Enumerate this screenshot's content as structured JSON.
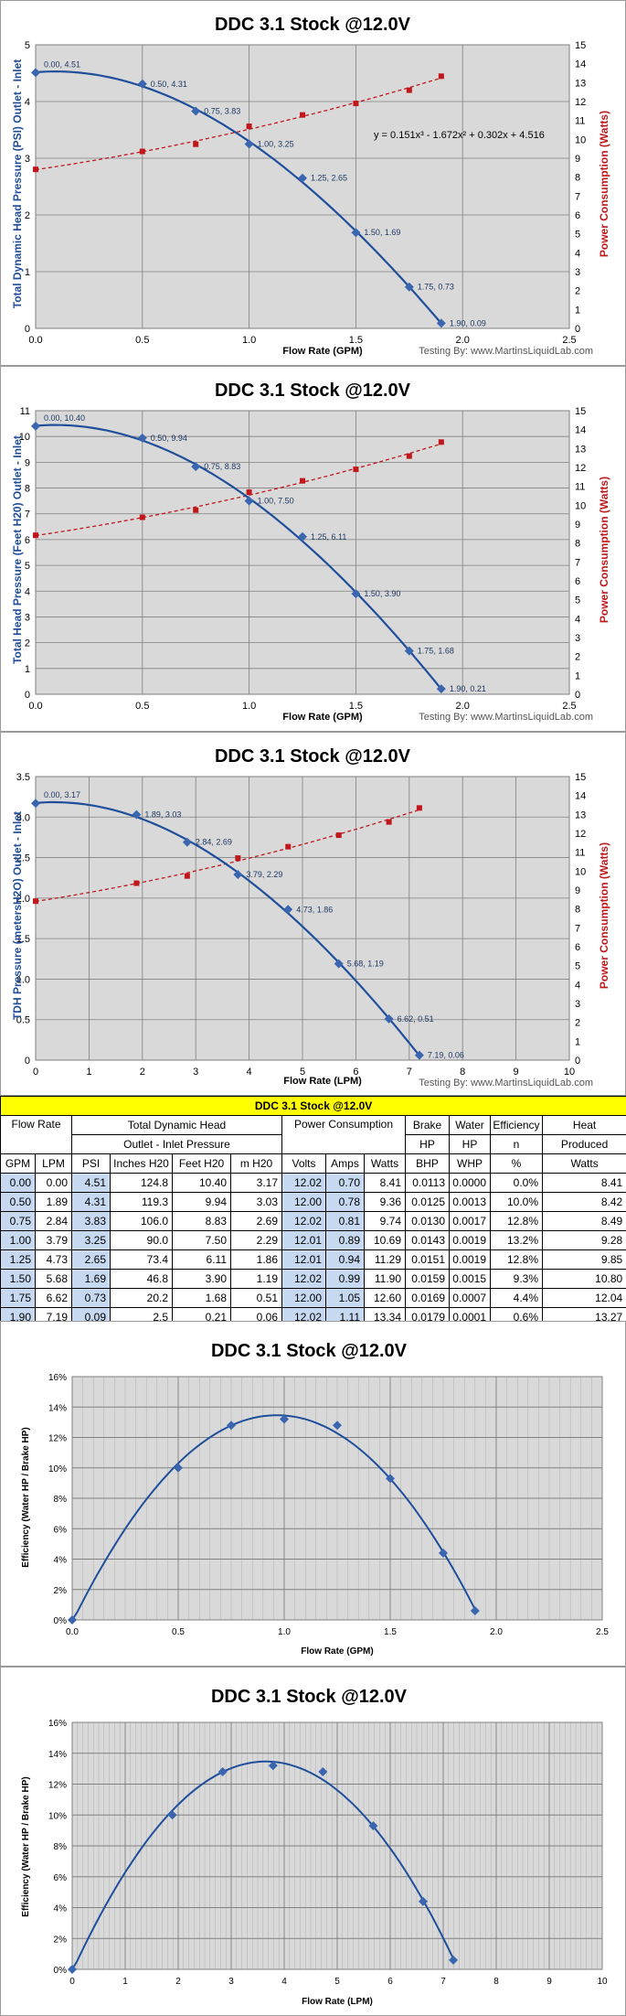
{
  "colors": {
    "blue": "#1f4e9b",
    "red": "#c0171b",
    "plot_bg": "#d9d9d9",
    "grid": "#808080",
    "yellow": "#ffff00",
    "light_blue": "#c6d9f1"
  },
  "credit": "Testing By: www.MartinsLiquidLab.com",
  "charts": [
    {
      "type": "line",
      "title": "DDC 3.1 Stock @12.0V",
      "xlabel": "Flow Rate (GPM)",
      "ylabel_left": "Total Dynamic Head Pressure (PSI) Outlet - Inlet",
      "ylabel_right": "Power Consumption (Watts)",
      "xlim": [
        0,
        2.5
      ],
      "xticks": [
        "0.0",
        "0.5",
        "1.0",
        "1.5",
        "2.0",
        "2.5"
      ],
      "ylim_left": [
        0,
        5
      ],
      "yticks_left": [
        "0",
        "1",
        "2",
        "3",
        "4",
        "5"
      ],
      "ylim_right": [
        0,
        15
      ],
      "yticks_right": [
        "0",
        "1",
        "2",
        "3",
        "4",
        "5",
        "6",
        "7",
        "8",
        "9",
        "10",
        "11",
        "12",
        "13",
        "14",
        "15"
      ],
      "equation": "y = 0.151x³ - 1.672x² + 0.302x + 4.516",
      "head_series": {
        "name": "Head (PSI)",
        "x": [
          0.0,
          0.5,
          0.75,
          1.0,
          1.25,
          1.5,
          1.75,
          1.9
        ],
        "y": [
          4.51,
          4.31,
          3.83,
          3.25,
          2.65,
          1.69,
          0.73,
          0.09
        ],
        "labels": [
          "0.00, 4.51",
          "0.50, 4.31",
          "0.75, 3.83",
          "1.00, 3.25",
          "1.25, 2.65",
          "1.50, 1.69",
          "1.75, 0.73",
          "1.90, 0.09"
        ]
      },
      "power_series": {
        "name": "Power (Watts)",
        "x": [
          0.0,
          0.5,
          0.75,
          1.0,
          1.25,
          1.5,
          1.75,
          1.9
        ],
        "y": [
          8.41,
          9.36,
          9.74,
          10.69,
          11.29,
          11.9,
          12.6,
          13.34
        ]
      }
    },
    {
      "type": "line",
      "title": "DDC 3.1 Stock @12.0V",
      "xlabel": "Flow Rate (GPM)",
      "ylabel_left": "Total Head Pressure (Feet H20) Outlet - Inlet",
      "ylabel_right": "Power Consumption (Watts)",
      "xlim": [
        0,
        2.5
      ],
      "xticks": [
        "0.0",
        "0.5",
        "1.0",
        "1.5",
        "2.0",
        "2.5"
      ],
      "ylim_left": [
        0,
        11
      ],
      "yticks_left": [
        "0",
        "1",
        "2",
        "3",
        "4",
        "5",
        "6",
        "7",
        "8",
        "9",
        "10",
        "11"
      ],
      "ylim_right": [
        0,
        15
      ],
      "yticks_right": [
        "0",
        "1",
        "2",
        "3",
        "4",
        "5",
        "6",
        "7",
        "8",
        "9",
        "10",
        "11",
        "12",
        "13",
        "14",
        "15"
      ],
      "head_series": {
        "name": "Head (Feet H20)",
        "x": [
          0.0,
          0.5,
          0.75,
          1.0,
          1.25,
          1.5,
          1.75,
          1.9
        ],
        "y": [
          10.4,
          9.94,
          8.83,
          7.5,
          6.11,
          3.9,
          1.68,
          0.21
        ],
        "labels": [
          "0.00, 10.40",
          "0.50, 9.94",
          "0.75, 8.83",
          "1.00, 7.50",
          "1.25, 6.11",
          "1.50, 3.90",
          "1.75, 1.68",
          "1.90, 0.21"
        ]
      },
      "power_series": {
        "name": "Power (Watts)",
        "x": [
          0.0,
          0.5,
          0.75,
          1.0,
          1.25,
          1.5,
          1.75,
          1.9
        ],
        "y": [
          8.41,
          9.36,
          9.74,
          10.69,
          11.29,
          11.9,
          12.6,
          13.34
        ]
      }
    },
    {
      "type": "line",
      "title": "DDC 3.1 Stock @12.0V",
      "xlabel": "Flow Rate (LPM)",
      "ylabel_left": "TDH Pressure (metersH2O) Outlet - Inlet",
      "ylabel_right": "Power Consumption (Watts)",
      "xlim": [
        0,
        10
      ],
      "xticks": [
        "0",
        "1",
        "2",
        "3",
        "4",
        "5",
        "6",
        "7",
        "8",
        "9",
        "10"
      ],
      "ylim_left": [
        0,
        3.5
      ],
      "yticks_left": [
        "0",
        "0.5",
        "1.0",
        "1.5",
        "2.0",
        "2.5",
        "3.0",
        "3.5"
      ],
      "ylim_right": [
        0,
        15
      ],
      "yticks_right": [
        "0",
        "1",
        "2",
        "3",
        "4",
        "5",
        "6",
        "7",
        "8",
        "9",
        "10",
        "11",
        "12",
        "13",
        "14",
        "15"
      ],
      "head_series": {
        "name": "Head (m H20)",
        "x": [
          0.0,
          1.89,
          2.84,
          3.79,
          4.73,
          5.68,
          6.62,
          7.19
        ],
        "y": [
          3.17,
          3.03,
          2.69,
          2.29,
          1.86,
          1.19,
          0.51,
          0.06
        ],
        "labels": [
          "0.00, 3.17",
          "1.89, 3.03",
          "2.84, 2.69",
          "3.79, 2.29",
          "4.73, 1.86",
          "5.68, 1.19",
          "6.62, 0.51",
          "7.19, 0.06"
        ]
      },
      "power_series": {
        "name": "Power (Watts)",
        "x": [
          0.0,
          1.89,
          2.84,
          3.79,
          4.73,
          5.68,
          6.62,
          7.19
        ],
        "y": [
          8.41,
          9.36,
          9.74,
          10.69,
          11.29,
          11.9,
          12.6,
          13.34
        ]
      }
    }
  ],
  "chart_data": [
    {
      "type": "line",
      "title": "DDC 3.1 Stock @12.0V",
      "xlabel": "Flow Rate (GPM)",
      "ylabel": "Total Dynamic Head Pressure (PSI) Outlet - Inlet",
      "y2label": "Power Consumption (Watts)",
      "series": [
        {
          "name": "PSI",
          "x": [
            0.0,
            0.5,
            0.75,
            1.0,
            1.25,
            1.5,
            1.75,
            1.9
          ],
          "values": [
            4.51,
            4.31,
            3.83,
            3.25,
            2.65,
            1.69,
            0.73,
            0.09
          ]
        },
        {
          "name": "Watts",
          "x": [
            0.0,
            0.5,
            0.75,
            1.0,
            1.25,
            1.5,
            1.75,
            1.9
          ],
          "values": [
            8.41,
            9.36,
            9.74,
            10.69,
            11.29,
            11.9,
            12.6,
            13.34
          ]
        }
      ]
    },
    {
      "type": "line",
      "title": "DDC 3.1 Stock @12.0V",
      "xlabel": "Flow Rate (GPM)",
      "ylabel": "Total Head Pressure (Feet H20) Outlet - Inlet",
      "y2label": "Power Consumption (Watts)",
      "series": [
        {
          "name": "Feet H20",
          "x": [
            0.0,
            0.5,
            0.75,
            1.0,
            1.25,
            1.5,
            1.75,
            1.9
          ],
          "values": [
            10.4,
            9.94,
            8.83,
            7.5,
            6.11,
            3.9,
            1.68,
            0.21
          ]
        },
        {
          "name": "Watts",
          "x": [
            0.0,
            0.5,
            0.75,
            1.0,
            1.25,
            1.5,
            1.75,
            1.9
          ],
          "values": [
            8.41,
            9.36,
            9.74,
            10.69,
            11.29,
            11.9,
            12.6,
            13.34
          ]
        }
      ]
    },
    {
      "type": "line",
      "title": "DDC 3.1 Stock @12.0V",
      "xlabel": "Flow Rate (LPM)",
      "ylabel": "TDH Pressure (metersH2O) Outlet - Inlet",
      "y2label": "Power Consumption (Watts)",
      "series": [
        {
          "name": "m H20",
          "x": [
            0.0,
            1.89,
            2.84,
            3.79,
            4.73,
            5.68,
            6.62,
            7.19
          ],
          "values": [
            3.17,
            3.03,
            2.69,
            2.29,
            1.86,
            1.19,
            0.51,
            0.06
          ]
        },
        {
          "name": "Watts",
          "x": [
            0.0,
            1.89,
            2.84,
            3.79,
            4.73,
            5.68,
            6.62,
            7.19
          ],
          "values": [
            8.41,
            9.36,
            9.74,
            10.69,
            11.29,
            11.9,
            12.6,
            13.34
          ]
        }
      ]
    },
    {
      "type": "table",
      "title": "DDC 3.1 Stock @12.0V",
      "columns": [
        "GPM",
        "LPM",
        "PSI",
        "Inches H20",
        "Feet H20",
        "m H20",
        "Volts",
        "Amps",
        "Watts",
        "BHP",
        "WHP",
        "%",
        "Watts"
      ],
      "rows": [
        [
          "0.00",
          "0.00",
          "4.51",
          "124.8",
          "10.40",
          "3.17",
          "12.02",
          "0.70",
          "8.41",
          "0.0113",
          "0.0000",
          "0.0%",
          "8.41"
        ],
        [
          "0.50",
          "1.89",
          "4.31",
          "119.3",
          "9.94",
          "3.03",
          "12.00",
          "0.78",
          "9.36",
          "0.0125",
          "0.0013",
          "10.0%",
          "8.42"
        ],
        [
          "0.75",
          "2.84",
          "3.83",
          "106.0",
          "8.83",
          "2.69",
          "12.02",
          "0.81",
          "9.74",
          "0.0130",
          "0.0017",
          "12.8%",
          "8.49"
        ],
        [
          "1.00",
          "3.79",
          "3.25",
          "90.0",
          "7.50",
          "2.29",
          "12.01",
          "0.89",
          "10.69",
          "0.0143",
          "0.0019",
          "13.2%",
          "9.28"
        ],
        [
          "1.25",
          "4.73",
          "2.65",
          "73.4",
          "6.11",
          "1.86",
          "12.01",
          "0.94",
          "11.29",
          "0.0151",
          "0.0019",
          "12.8%",
          "9.85"
        ],
        [
          "1.50",
          "5.68",
          "1.69",
          "46.8",
          "3.90",
          "1.19",
          "12.02",
          "0.99",
          "11.90",
          "0.0159",
          "0.0015",
          "9.3%",
          "10.80"
        ],
        [
          "1.75",
          "6.62",
          "0.73",
          "20.2",
          "1.68",
          "0.51",
          "12.00",
          "1.05",
          "12.60",
          "0.0169",
          "0.0007",
          "4.4%",
          "12.04"
        ],
        [
          "1.90",
          "7.19",
          "0.09",
          "2.5",
          "0.21",
          "0.06",
          "12.02",
          "1.11",
          "13.34",
          "0.0179",
          "0.0001",
          "0.6%",
          "13.27"
        ]
      ]
    },
    {
      "type": "line",
      "title": "DDC 3.1 Stock @12.0V",
      "xlabel": "Flow Rate (GPM)",
      "ylabel": "Efficiency (Water HP / Brake HP)",
      "ylim": [
        0,
        16
      ],
      "series": [
        {
          "name": "Efficiency %",
          "x": [
            0.0,
            0.5,
            0.75,
            1.0,
            1.25,
            1.5,
            1.75,
            1.9
          ],
          "values": [
            0.0,
            10.0,
            12.8,
            13.2,
            12.8,
            9.3,
            4.4,
            0.6
          ]
        }
      ]
    },
    {
      "type": "line",
      "title": "DDC 3.1 Stock @12.0V",
      "xlabel": "Flow Rate (LPM)",
      "ylabel": "Efficiency (Water HP / Brake HP)",
      "ylim": [
        0,
        16
      ],
      "series": [
        {
          "name": "Efficiency %",
          "x": [
            0.0,
            1.89,
            2.84,
            3.79,
            4.73,
            5.68,
            6.62,
            7.19
          ],
          "values": [
            0.0,
            10.0,
            12.8,
            13.2,
            12.8,
            9.3,
            4.4,
            0.6
          ]
        }
      ]
    }
  ],
  "table": {
    "title": "DDC 3.1 Stock @12.0V",
    "header1": {
      "flow": "Flow Rate",
      "head": "Total Dynamic Head",
      "power": "Power Consumption",
      "brake": "Brake",
      "water": "Water",
      "eff": "Efficiency",
      "heat": "Heat"
    },
    "header2": {
      "head": "Outlet - Inlet Pressure",
      "brake": "HP",
      "water": "HP",
      "eff": "n",
      "heat": "Produced"
    },
    "header3": [
      "GPM",
      "LPM",
      "PSI",
      "Inches H20",
      "Feet H20",
      "m H20",
      "Volts",
      "Amps",
      "Watts",
      "BHP",
      "WHP",
      "%",
      "Watts"
    ],
    "rows": [
      [
        "0.00",
        "0.00",
        "4.51",
        "124.8",
        "10.40",
        "3.17",
        "12.02",
        "0.70",
        "8.41",
        "0.0113",
        "0.0000",
        "0.0%",
        "8.41"
      ],
      [
        "0.50",
        "1.89",
        "4.31",
        "119.3",
        "9.94",
        "3.03",
        "12.00",
        "0.78",
        "9.36",
        "0.0125",
        "0.0013",
        "10.0%",
        "8.42"
      ],
      [
        "0.75",
        "2.84",
        "3.83",
        "106.0",
        "8.83",
        "2.69",
        "12.02",
        "0.81",
        "9.74",
        "0.0130",
        "0.0017",
        "12.8%",
        "8.49"
      ],
      [
        "1.00",
        "3.79",
        "3.25",
        "90.0",
        "7.50",
        "2.29",
        "12.01",
        "0.89",
        "10.69",
        "0.0143",
        "0.0019",
        "13.2%",
        "9.28"
      ],
      [
        "1.25",
        "4.73",
        "2.65",
        "73.4",
        "6.11",
        "1.86",
        "12.01",
        "0.94",
        "11.29",
        "0.0151",
        "0.0019",
        "12.8%",
        "9.85"
      ],
      [
        "1.50",
        "5.68",
        "1.69",
        "46.8",
        "3.90",
        "1.19",
        "12.02",
        "0.99",
        "11.90",
        "0.0159",
        "0.0015",
        "9.3%",
        "10.80"
      ],
      [
        "1.75",
        "6.62",
        "0.73",
        "20.2",
        "1.68",
        "0.51",
        "12.00",
        "1.05",
        "12.60",
        "0.0169",
        "0.0007",
        "4.4%",
        "12.04"
      ],
      [
        "1.90",
        "7.19",
        "0.09",
        "2.5",
        "0.21",
        "0.06",
        "12.02",
        "1.11",
        "13.34",
        "0.0179",
        "0.0001",
        "0.6%",
        "13.27"
      ]
    ]
  },
  "eff_charts": [
    {
      "title": "DDC 3.1 Stock @12.0V",
      "xlabel": "Flow Rate (GPM)",
      "ylabel": "Efficiency (Water HP / Brake HP)",
      "xlim": [
        0,
        2.5
      ],
      "xticks": [
        "0.0",
        "0.5",
        "1.0",
        "1.5",
        "2.0",
        "2.5"
      ],
      "ylim": [
        0,
        16
      ],
      "yticks": [
        "0%",
        "2%",
        "4%",
        "6%",
        "8%",
        "10%",
        "12%",
        "14%",
        "16%"
      ],
      "x": [
        0.0,
        0.5,
        0.75,
        1.0,
        1.25,
        1.5,
        1.75,
        1.9
      ],
      "y": [
        0.0,
        10.0,
        12.8,
        13.2,
        12.8,
        9.3,
        4.4,
        0.6
      ]
    },
    {
      "title": "DDC 3.1 Stock @12.0V",
      "xlabel": "Flow Rate (LPM)",
      "ylabel": "Efficiency (Water HP / Brake HP)",
      "xlim": [
        0,
        10
      ],
      "xticks": [
        "0",
        "1",
        "2",
        "3",
        "4",
        "5",
        "6",
        "7",
        "8",
        "9",
        "10"
      ],
      "ylim": [
        0,
        16
      ],
      "yticks": [
        "0%",
        "2%",
        "4%",
        "6%",
        "8%",
        "10%",
        "12%",
        "14%",
        "16%"
      ],
      "x": [
        0.0,
        1.89,
        2.84,
        3.79,
        4.73,
        5.68,
        6.62,
        7.19
      ],
      "y": [
        0.0,
        10.0,
        12.8,
        13.2,
        12.8,
        9.3,
        4.4,
        0.6
      ]
    }
  ]
}
